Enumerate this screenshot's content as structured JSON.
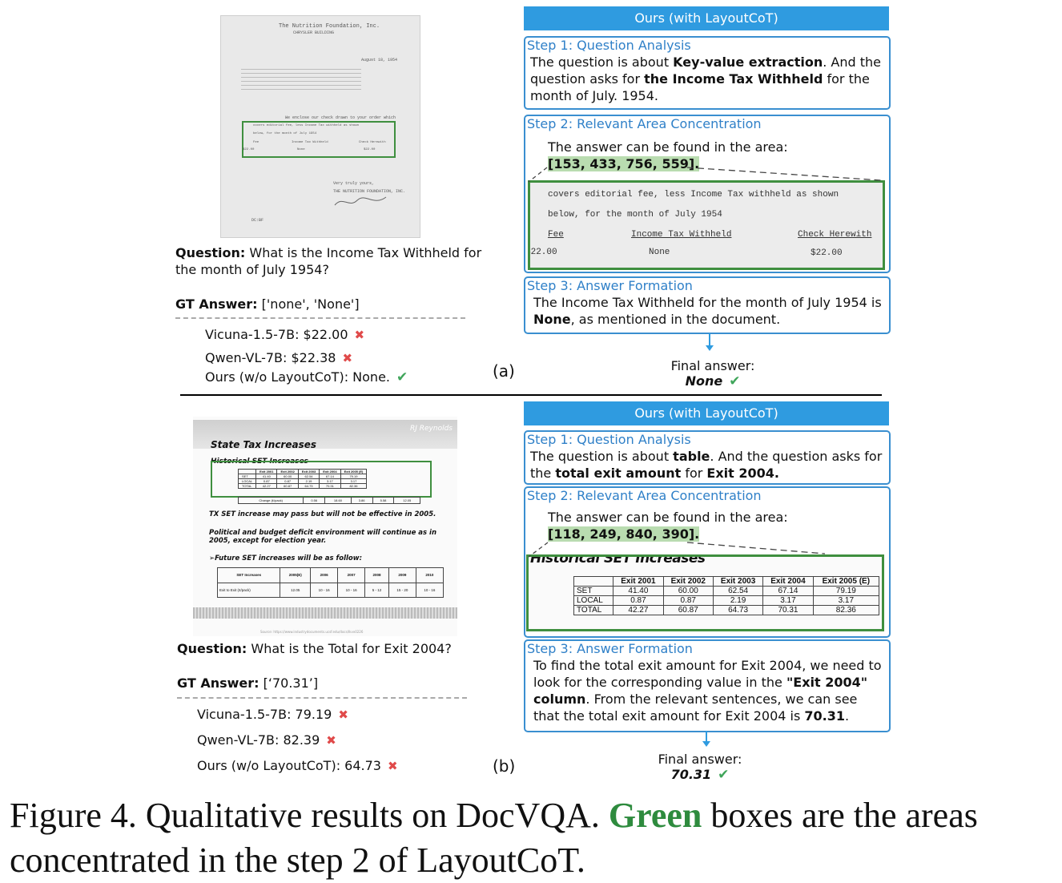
{
  "panel_a": {
    "doc": {
      "letterhead": "The Nutrition Foundation, Inc.",
      "building": "CHRYSLER BUILDING",
      "date": "August 18, 1954",
      "intro": "We enclose our check drawn to your order which",
      "box_line1": "covers editorial fee, less Income Tax withheld as shown",
      "box_line2": "below, for the month of July 1954",
      "col_fee": "Fee",
      "col_tax": "Income Tax Withheld",
      "col_check": "Check Herewith",
      "val_fee": "$22.00",
      "val_tax": "None",
      "val_check": "$22.00",
      "closing": "Very truly yours,",
      "org": "THE NUTRITION FOUNDATION, INC.",
      "initials": "DC:BF"
    },
    "question_label": "Question:",
    "question_text": "What is the Income Tax Withheld for the month of July 1954?",
    "gt_label": "GT Answer:",
    "gt_value": "['none', 'None']",
    "models": [
      {
        "text": "Vicuna-1.5-7B: $22.00",
        "mark": "✖"
      },
      {
        "text": "Qwen-VL-7B: $22.38",
        "mark": "✖"
      },
      {
        "text": "Ours (w/o LayoutCoT): None.",
        "mark": "✔"
      }
    ],
    "label": "(a)",
    "header": "Ours (with LayoutCoT)",
    "step1_title": "Step 1: Question Analysis",
    "step1_a": "The question is about ",
    "step1_b": "Key-value extraction",
    "step1_c": ". And the question asks for ",
    "step1_d": "the Income Tax Withheld",
    "step1_e": " for the month of July. 1954.",
    "step2_title": "Step 2: Relevant Area Concentration",
    "step2_text": "The answer can be found in the area:",
    "step2_coords": "[153, 433, 756, 559].",
    "step3_title": "Step 3: Answer Formation",
    "step3_a": "The Income Tax Withheld for the month of July 1954 is ",
    "step3_b": "None",
    "step3_c": ", as mentioned in the document.",
    "final_label": "Final answer:",
    "final_value": "None",
    "final_mark": "✔"
  },
  "panel_b": {
    "doc": {
      "brand": "RJ Reynolds",
      "title": "State Tax Increases",
      "subtitle": "Historical SET Increases",
      "table_headers": [
        "",
        "Exit 2001",
        "Exit 2002",
        "Exit 2003",
        "Exit 2004",
        "Exit 2005 (E)"
      ],
      "table_rows": [
        [
          "SET",
          "41.40",
          "60.00",
          "62.54",
          "67.14",
          "79.19"
        ],
        [
          "LOCAL",
          "0.87",
          "0.87",
          "2.19",
          "3.17",
          "3.17"
        ],
        [
          "TOTAL",
          "42.27",
          "60.87",
          "64.73",
          "70.31",
          "82.36"
        ]
      ],
      "change_row": [
        "Change (¢/pack)",
        "0.56",
        "18.60",
        "3.86",
        "5.58",
        "12.05"
      ],
      "line1": "TX SET increase may pass but will not be effective in 2005.",
      "line2": "Political and budget deficit environment will continue as in 2005, except for election year.",
      "line3": "➢Future SET increases will be as follow:",
      "future_headers": [
        "SET Increases",
        "2005(E)",
        "2006",
        "2007",
        "2008",
        "2009",
        "2010"
      ],
      "future_row": [
        "Exit to Exit (¢/pack)",
        "12.05",
        "10 - 16",
        "10 - 16",
        "5 - 12",
        "15 - 20",
        "10 - 16"
      ],
      "source": "Source: https://www.industrydocuments.ucsf.edu/docs/lkvx0226"
    },
    "question_label": "Question:",
    "question_text": "What is the Total for Exit 2004?",
    "gt_label": "GT Answer:",
    "gt_value": "[‘70.31’]",
    "models": [
      {
        "text": "Vicuna-1.5-7B: 79.19",
        "mark": "✖"
      },
      {
        "text": "Qwen-VL-7B: 82.39",
        "mark": "✖"
      },
      {
        "text": "Ours (w/o LayoutCoT): 64.73",
        "mark": "✖"
      }
    ],
    "label": "(b)",
    "header": "Ours (with LayoutCoT)",
    "step1_title": "Step 1: Question Analysis",
    "step1_a": "The question is about ",
    "step1_b": "table",
    "step1_c": ". And the question asks for the ",
    "step1_d": "total exit amount",
    "step1_e": " for ",
    "step1_f": "Exit 2004.",
    "step2_title": "Step 2: Relevant Area Concentration",
    "step2_text": "The answer can be found in the area:",
    "step2_coords": "[118, 249, 840, 390].",
    "step3_title": "Step 3: Answer Formation",
    "step3_a": "To find the total exit amount for Exit 2004, we need to look for the corresponding value in the ",
    "step3_b": "\"Exit 2004\" column",
    "step3_c": ". From the relevant sentences, we can see that the total exit amount for Exit 2004 is ",
    "step3_d": "70.31",
    "step3_e": ".",
    "final_label": "Final answer:",
    "final_value": "70.31",
    "final_mark": "✔"
  },
  "caption": {
    "prefix": "Figure 4.  Qualitative results on DocVQA. ",
    "green": "Green",
    "suffix": " boxes are the areas concentrated in the step 2 of LayoutCoT."
  },
  "colors": {
    "green": "#2e8b3e",
    "blue": "#2f9be0",
    "red": "#e04a4a"
  }
}
